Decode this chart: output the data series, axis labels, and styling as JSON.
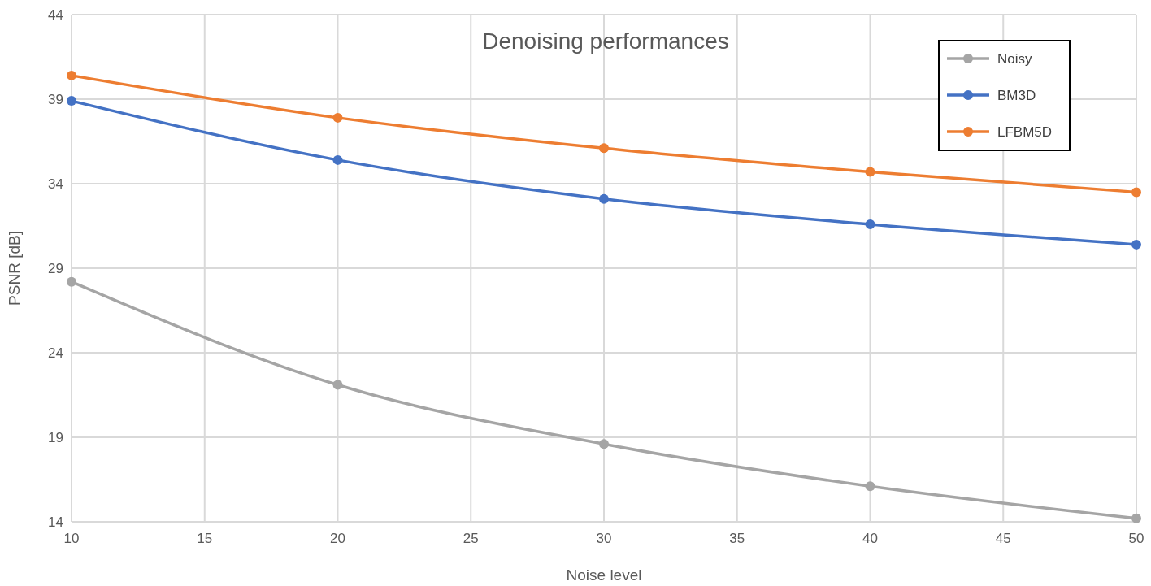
{
  "chart_data": {
    "type": "line",
    "title": "Denoising performances",
    "xlabel": "Noise level",
    "ylabel": "PSNR [dB]",
    "x": [
      10,
      20,
      30,
      40,
      50
    ],
    "series": [
      {
        "name": "Noisy",
        "color": "#a5a5a5",
        "values": [
          28.2,
          22.1,
          18.6,
          16.1,
          14.2
        ]
      },
      {
        "name": "BM3D",
        "color": "#4472c4",
        "values": [
          38.9,
          35.4,
          33.1,
          31.6,
          30.4
        ]
      },
      {
        "name": "LFBM5D",
        "color": "#ed7d31",
        "values": [
          40.4,
          37.9,
          36.1,
          34.7,
          33.5
        ]
      }
    ],
    "xlim": [
      10,
      50
    ],
    "xticks": [
      10,
      15,
      20,
      25,
      30,
      35,
      40,
      45,
      50
    ],
    "ylim": [
      14,
      44
    ],
    "yticks": [
      14,
      19,
      24,
      29,
      34,
      39,
      44
    ],
    "grid": true,
    "legend": "top right",
    "marker": "circle",
    "line_style": "solid"
  }
}
